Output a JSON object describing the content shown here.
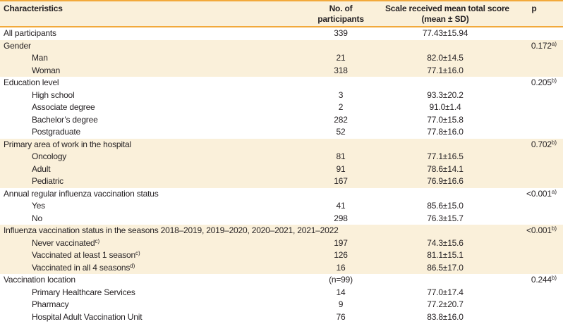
{
  "header": {
    "characteristics": "Characteristics",
    "participants_line1": "No. of",
    "participants_line2": "participants",
    "score_line1": "Scale received mean total score",
    "score_line2": "(mean ± SD)",
    "p": "p"
  },
  "colors": {
    "band_cream": "#FAF0DA",
    "accent_orange": "#F2A93B",
    "text": "#262224"
  },
  "rows": [
    {
      "label": "All participants",
      "label_sup": "",
      "indent": false,
      "n": "339",
      "score": "77.43±15.94",
      "p": "",
      "p_sup": "",
      "band": "white"
    },
    {
      "label": "Gender",
      "label_sup": "",
      "indent": false,
      "n": "",
      "score": "",
      "p": "0.172",
      "p_sup": "a)",
      "band": "cream"
    },
    {
      "label": "Man",
      "label_sup": "",
      "indent": true,
      "n": "21",
      "score": "82.0±14.5",
      "p": "",
      "p_sup": "",
      "band": "cream"
    },
    {
      "label": "Woman",
      "label_sup": "",
      "indent": true,
      "n": "318",
      "score": "77.1±16.0",
      "p": "",
      "p_sup": "",
      "band": "cream"
    },
    {
      "label": "Education level",
      "label_sup": "",
      "indent": false,
      "n": "",
      "score": "",
      "p": "0.205",
      "p_sup": "b)",
      "band": "white"
    },
    {
      "label": "High school",
      "label_sup": "",
      "indent": true,
      "n": "3",
      "score": "93.3±20.2",
      "p": "",
      "p_sup": "",
      "band": "white"
    },
    {
      "label": "Associate degree",
      "label_sup": "",
      "indent": true,
      "n": "2",
      "score": "91.0±1.4",
      "p": "",
      "p_sup": "",
      "band": "white"
    },
    {
      "label": "Bachelor’s degree",
      "label_sup": "",
      "indent": true,
      "n": "282",
      "score": "77.0±15.8",
      "p": "",
      "p_sup": "",
      "band": "white"
    },
    {
      "label": "Postgraduate",
      "label_sup": "",
      "indent": true,
      "n": "52",
      "score": "77.8±16.0",
      "p": "",
      "p_sup": "",
      "band": "white"
    },
    {
      "label": "Primary area of work in the hospital",
      "label_sup": "",
      "indent": false,
      "n": "",
      "score": "",
      "p": "0.702",
      "p_sup": "b)",
      "band": "cream"
    },
    {
      "label": "Oncology",
      "label_sup": "",
      "indent": true,
      "n": "81",
      "score": "77.1±16.5",
      "p": "",
      "p_sup": "",
      "band": "cream"
    },
    {
      "label": "Adult",
      "label_sup": "",
      "indent": true,
      "n": "91",
      "score": "78.6±14.1",
      "p": "",
      "p_sup": "",
      "band": "cream"
    },
    {
      "label": "Pediatric",
      "label_sup": "",
      "indent": true,
      "n": "167",
      "score": "76.9±16.6",
      "p": "",
      "p_sup": "",
      "band": "cream"
    },
    {
      "label": "Annual regular influenza vaccination status",
      "label_sup": "",
      "indent": false,
      "n": "",
      "score": "",
      "p": "<0.001",
      "p_sup": "a)",
      "band": "white"
    },
    {
      "label": "Yes",
      "label_sup": "",
      "indent": true,
      "n": "41",
      "score": "85.6±15.0",
      "p": "",
      "p_sup": "",
      "band": "white"
    },
    {
      "label": "No",
      "label_sup": "",
      "indent": true,
      "n": "298",
      "score": "76.3±15.7",
      "p": "",
      "p_sup": "",
      "band": "white"
    },
    {
      "label": "Influenza vaccination status in the seasons 2018–2019, 2019–2020, 2020–2021, 2021–2022",
      "label_sup": "",
      "indent": false,
      "n": "",
      "score": "",
      "p": "<0.001",
      "p_sup": "b)",
      "band": "cream"
    },
    {
      "label": "Never vaccinated",
      "label_sup": "c)",
      "indent": true,
      "n": "197",
      "score": "74.3±15.6",
      "p": "",
      "p_sup": "",
      "band": "cream"
    },
    {
      "label": "Vaccinated at least 1 season",
      "label_sup": "c)",
      "indent": true,
      "n": "126",
      "score": "81.1±15.1",
      "p": "",
      "p_sup": "",
      "band": "cream"
    },
    {
      "label": "Vaccinated in all 4 seasons",
      "label_sup": "d)",
      "indent": true,
      "n": "16",
      "score": "86.5±17.0",
      "p": "",
      "p_sup": "",
      "band": "cream"
    },
    {
      "label": "Vaccination location",
      "label_sup": "",
      "indent": false,
      "n": "(n=99)",
      "score": "",
      "p": "0.244",
      "p_sup": "b)",
      "band": "white"
    },
    {
      "label": "Primary Healthcare Services",
      "label_sup": "",
      "indent": true,
      "n": "14",
      "score": "77.0±17.4",
      "p": "",
      "p_sup": "",
      "band": "white"
    },
    {
      "label": "Pharmacy",
      "label_sup": "",
      "indent": true,
      "n": "9",
      "score": "77.2±20.7",
      "p": "",
      "p_sup": "",
      "band": "white"
    },
    {
      "label": "Hospital Adult Vaccination Unit",
      "label_sup": "",
      "indent": true,
      "n": "76",
      "score": "83.8±16.0",
      "p": "",
      "p_sup": "",
      "band": "white"
    }
  ]
}
